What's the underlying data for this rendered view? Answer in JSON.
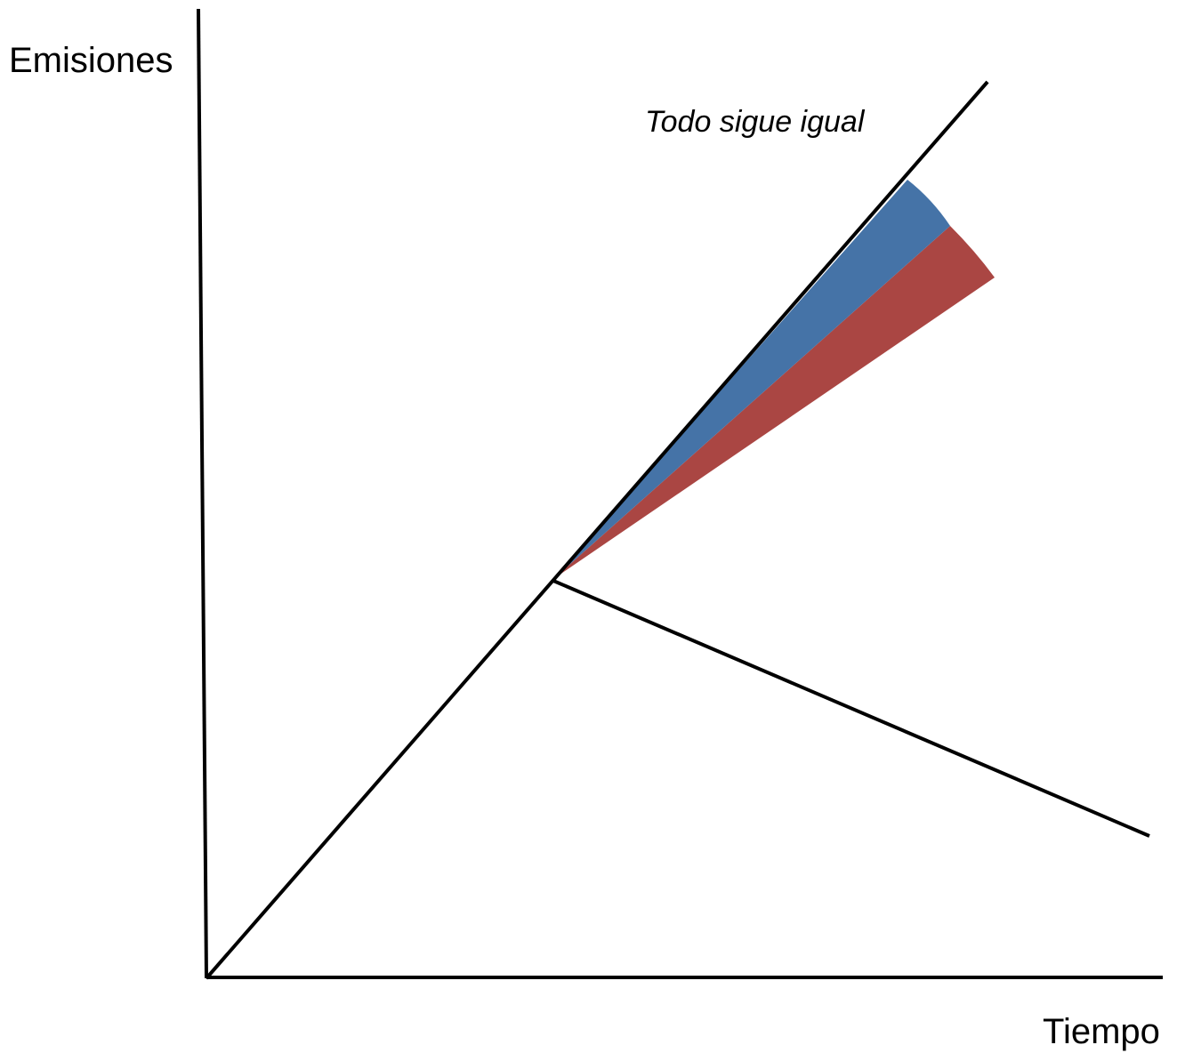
{
  "diagram": {
    "y_axis_label": "Emisiones",
    "x_axis_label": "Tiempo",
    "curve_label": "Todo sigue igual",
    "colors": {
      "line": "#000000",
      "blue_wedge": "#4573A7",
      "red_wedge": "#AA4643",
      "background": "#FFFFFF"
    }
  }
}
